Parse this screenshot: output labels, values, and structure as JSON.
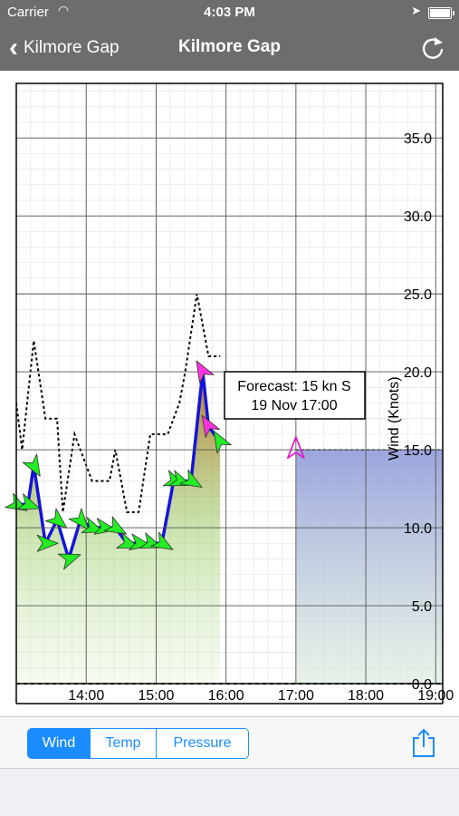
{
  "status": {
    "carrier": "Carrier",
    "time": "4:03 PM"
  },
  "nav": {
    "back_label": "Kilmore Gap",
    "title": "Kilmore Gap"
  },
  "segments": [
    {
      "label": "Wind",
      "active": true
    },
    {
      "label": "Temp",
      "active": false
    },
    {
      "label": "Pressure",
      "active": false
    }
  ],
  "chart_data": {
    "type": "line",
    "ylabel": "Wind (Knots)",
    "ylim": [
      0,
      38.5
    ],
    "yticks": [
      0,
      5,
      10,
      15,
      20,
      25,
      30,
      35
    ],
    "ytick_labels": [
      "0.0",
      "5.0",
      "10.0",
      "15.0",
      "20.0",
      "25.0",
      "30.0",
      "35.0"
    ],
    "xlim_hours": [
      13.0,
      19.1
    ],
    "xticks": [
      "14:00",
      "15:00",
      "16:00",
      "17:00",
      "18:00",
      "19:00"
    ],
    "grid": true,
    "series": [
      {
        "role": "average",
        "color": "#1414dc",
        "times": [
          "13:00",
          "13:10",
          "13:15",
          "13:25",
          "13:35",
          "13:45",
          "13:55",
          "14:05",
          "14:15",
          "14:25",
          "14:35",
          "14:45",
          "14:55",
          "15:05",
          "15:15",
          "15:20",
          "15:30",
          "15:40",
          "15:45",
          "15:55"
        ],
        "values": [
          11.5,
          11.5,
          14,
          9,
          10.5,
          8,
          10.5,
          10,
          10,
          10,
          9,
          9,
          9,
          9,
          13,
          13,
          13,
          20,
          16.5,
          15.5
        ],
        "directions_deg": [
          300,
          290,
          330,
          270,
          310,
          250,
          320,
          290,
          280,
          300,
          290,
          280,
          290,
          300,
          290,
          290,
          300,
          150,
          150,
          150
        ]
      },
      {
        "role": "gust",
        "color": "#000000",
        "times": [
          "13:00",
          "13:05",
          "13:15",
          "13:25",
          "13:35",
          "13:40",
          "13:50",
          "13:55",
          "14:05",
          "14:10",
          "14:20",
          "14:25",
          "14:35",
          "14:45",
          "14:55",
          "15:05",
          "15:10",
          "15:20",
          "15:25",
          "15:35",
          "15:45",
          "15:55"
        ],
        "values": [
          18,
          15,
          22,
          17,
          17,
          11,
          16,
          15,
          13,
          13,
          13,
          15,
          11,
          11,
          16,
          16,
          16,
          18,
          20,
          25,
          21,
          21
        ]
      }
    ],
    "forecast": {
      "time": "17:00",
      "value": 15,
      "direction_deg": 180,
      "until": "19:10"
    },
    "tooltip": {
      "line1": "Forecast: 15 kn S",
      "line2": "19 Nov 17:00"
    }
  }
}
